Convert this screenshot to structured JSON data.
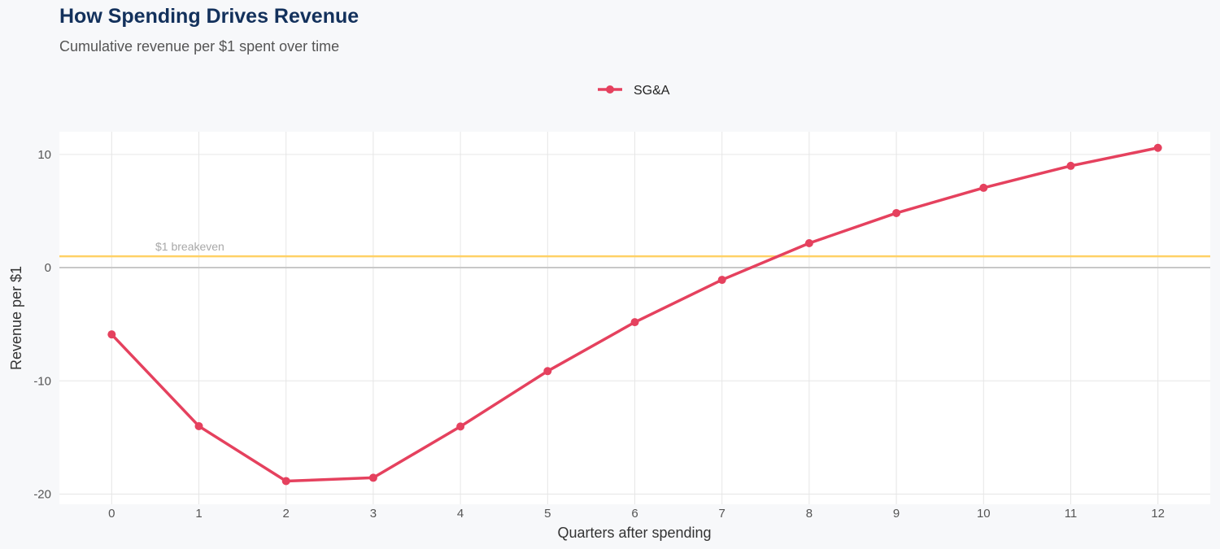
{
  "title": "How Spending Drives Revenue",
  "subtitle": "Cumulative revenue per $1 spent over time",
  "chart_data": {
    "type": "line",
    "xlabel": "Quarters after spending",
    "ylabel": "Revenue per $1",
    "x": [
      0,
      1,
      2,
      3,
      4,
      5,
      6,
      7,
      8,
      9,
      10,
      11,
      12
    ],
    "series": [
      {
        "name": "SG&A",
        "color": "#e5415e",
        "values": [
          -5.9,
          -14.0,
          -18.85,
          -18.56,
          -14.03,
          -9.14,
          -4.82,
          -1.08,
          2.16,
          4.82,
          7.05,
          8.99,
          10.58
        ]
      }
    ],
    "xlim": [
      -0.6,
      12.6
    ],
    "ylim": [
      -20.9,
      12.0
    ],
    "xticks": [
      0,
      1,
      2,
      3,
      4,
      5,
      6,
      7,
      8,
      9,
      10,
      11,
      12
    ],
    "yticks": [
      -20,
      -10,
      0,
      10
    ],
    "grid": true,
    "legend": "top-center",
    "reference_line": {
      "y": 1,
      "label": "$1 breakeven",
      "color": "#ffd166"
    },
    "zero_line_color": "#c8c8c8",
    "panel_background": "#ffffff",
    "page_background": "#f7f8fa"
  }
}
